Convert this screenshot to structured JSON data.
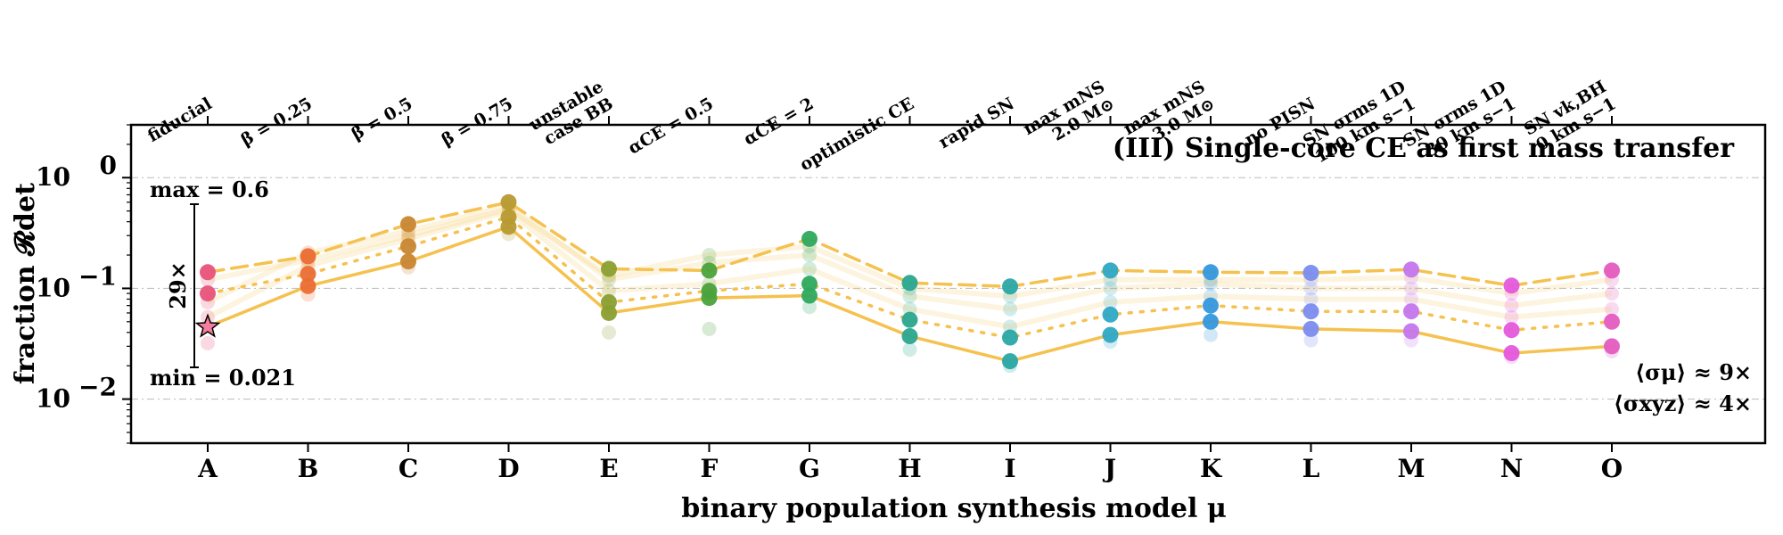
{
  "chart_data": {
    "type": "line",
    "title": "(III) Single-core CE as first mass transfer",
    "xlabel": "binary population synthesis model μ",
    "ylabel": "fraction 𝓡det",
    "yscale": "log",
    "ylim": [
      0.004,
      3.0
    ],
    "ytick_labels": [
      "10^0",
      "10^-1",
      "10^-2"
    ],
    "grid": "horizontal dash-dot",
    "categories": [
      "A",
      "B",
      "C",
      "D",
      "E",
      "F",
      "G",
      "H",
      "I",
      "J",
      "K",
      "L",
      "M",
      "N",
      "O"
    ],
    "top_labels": [
      [
        "fiducial"
      ],
      [
        "β = 0.25"
      ],
      [
        "β = 0.5"
      ],
      [
        "β = 0.75"
      ],
      [
        "unstable",
        "case BB"
      ],
      [
        "αCE = 0.5"
      ],
      [
        "αCE = 2"
      ],
      [
        "optimistic CE"
      ],
      [
        "rapid SN"
      ],
      [
        "max mNS",
        "2.0 M⊙"
      ],
      [
        "max mNS",
        "3.0 M⊙"
      ],
      [
        "no PISN"
      ],
      [
        "SN σrms 1D",
        "100 km s−1"
      ],
      [
        "SN σrms 1D",
        "30 km s−1"
      ],
      [
        "SN vk,BH",
        "0 km s−1"
      ]
    ],
    "category_colors": [
      "#e8537a",
      "#ea6e34",
      "#c88632",
      "#b79a32",
      "#8a9f30",
      "#4aa23a",
      "#2ea95e",
      "#2aa78f",
      "#2aa7a6",
      "#2ea8c4",
      "#3498dc",
      "#7a8cf0",
      "#c476ec",
      "#e458dc",
      "#e45cc0"
    ],
    "line_color": "#f5c14f",
    "series": [
      {
        "style": "dashed",
        "values": [
          0.14,
          0.195,
          0.38,
          0.6,
          0.15,
          0.145,
          0.28,
          0.112,
          0.104,
          0.145,
          0.14,
          0.138,
          0.148,
          0.106,
          0.145
        ]
      },
      {
        "style": "dotted",
        "values": [
          0.09,
          0.135,
          0.24,
          0.44,
          0.075,
          0.095,
          0.11,
          0.052,
          0.036,
          0.058,
          0.07,
          0.062,
          0.062,
          0.042,
          0.05
        ]
      },
      {
        "style": "solid",
        "values": [
          0.045,
          0.105,
          0.175,
          0.36,
          0.06,
          0.082,
          0.086,
          0.037,
          0.022,
          0.038,
          0.05,
          0.043,
          0.041,
          0.026,
          0.03
        ]
      }
    ],
    "faint_points": [
      [
        0.032,
        0.055,
        0.075,
        0.12
      ],
      [
        0.088,
        0.16,
        0.21,
        0.18
      ],
      [
        0.155,
        0.28,
        0.33,
        0.3
      ],
      [
        0.31,
        0.5,
        0.56,
        0.52
      ],
      [
        0.04,
        0.095,
        0.12,
        0.13
      ],
      [
        0.043,
        0.11,
        0.17,
        0.2
      ],
      [
        0.068,
        0.15,
        0.2,
        0.24
      ],
      [
        0.028,
        0.065,
        0.085,
        0.1
      ],
      [
        0.02,
        0.045,
        0.065,
        0.085
      ],
      [
        0.033,
        0.075,
        0.1,
        0.12
      ],
      [
        0.038,
        0.085,
        0.11,
        0.12
      ],
      [
        0.034,
        0.08,
        0.1,
        0.12
      ],
      [
        0.034,
        0.08,
        0.1,
        0.125
      ],
      [
        0.024,
        0.055,
        0.07,
        0.09
      ],
      [
        0.027,
        0.065,
        0.09,
        0.12
      ]
    ],
    "highlight": {
      "category": "A",
      "marker": "star",
      "value": 0.045
    },
    "range_annotation": {
      "max_label": "max = 0.6",
      "min_label": "min = 0.021",
      "factor_label": "29×",
      "max": 0.6,
      "min": 0.021
    },
    "summary_labels": [
      "⟨σμ⟩ ≈ 9×",
      "⟨σxyz⟩ ≈ 4×"
    ]
  }
}
